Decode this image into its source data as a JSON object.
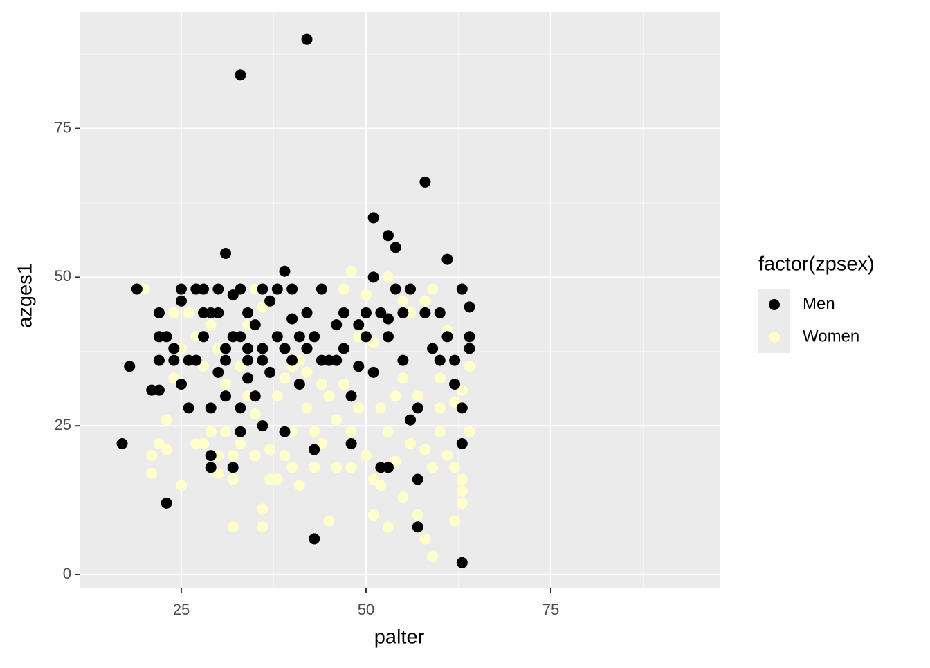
{
  "chart_data": {
    "type": "scatter",
    "x_label": "palter",
    "y_label": "azges1",
    "legend_title": "factor(zpsex)",
    "legend_position": "right",
    "grid": true,
    "xlim": [
      11.24,
      97.85
    ],
    "ylim": [
      -2.33,
      94.5
    ],
    "xticks": [
      25,
      50,
      75
    ],
    "yticks": [
      0,
      25,
      50,
      75
    ],
    "x_minor_breaks": [
      12.5,
      37.5,
      62.5,
      87.5
    ],
    "y_minor_breaks": [
      12.5,
      37.5,
      62.5,
      87.5
    ],
    "series": [
      {
        "name": "Women",
        "color": "#ffffcc",
        "x": [
          20,
          21,
          21,
          22,
          23,
          23,
          24,
          24,
          25,
          25,
          26,
          27,
          28,
          28,
          29,
          29,
          30,
          30,
          31,
          31,
          32,
          32,
          32,
          33,
          33,
          34,
          34,
          35,
          35,
          35,
          36,
          36,
          36,
          37,
          37,
          38,
          38,
          39,
          39,
          40,
          40,
          41,
          41,
          42,
          43,
          43,
          44,
          44,
          45,
          45,
          46,
          46,
          47,
          47,
          48,
          48,
          49,
          49,
          50,
          50,
          51,
          51,
          51,
          52,
          52,
          53,
          53,
          53,
          54,
          54,
          55,
          55,
          55,
          56,
          56,
          57,
          57,
          58,
          58,
          59,
          59,
          59,
          60,
          60,
          61,
          61,
          62,
          62,
          62,
          63,
          63,
          63,
          63,
          64,
          64,
          60,
          58,
          48,
          44,
          40,
          27,
          30,
          42
        ],
        "y": [
          48,
          20,
          17,
          22,
          26,
          21,
          44,
          33,
          15,
          38,
          44,
          40,
          35,
          22,
          24,
          42,
          17,
          38,
          24,
          32,
          8,
          16,
          20,
          35,
          22,
          42,
          30,
          48,
          27,
          20,
          11,
          8,
          45,
          21,
          16,
          30,
          16,
          20,
          33,
          24,
          18,
          15,
          36,
          28,
          18,
          24,
          36,
          22,
          9,
          30,
          18,
          26,
          48,
          32,
          51,
          18,
          28,
          40,
          20,
          47,
          10,
          39,
          16,
          15,
          28,
          8,
          50,
          24,
          30,
          19,
          13,
          46,
          33,
          22,
          44,
          10,
          30,
          6,
          46,
          3,
          18,
          48,
          24,
          33,
          20,
          41,
          9,
          29,
          18,
          16,
          14,
          12,
          31,
          24,
          35,
          28,
          21,
          24,
          32,
          35,
          22,
          20,
          34
        ]
      },
      {
        "name": "Men",
        "color": "#000000",
        "x": [
          17,
          18,
          19,
          21,
          22,
          22,
          22,
          22,
          23,
          23,
          24,
          24,
          25,
          25,
          25,
          26,
          27,
          28,
          28,
          29,
          29,
          29,
          29,
          30,
          30,
          31,
          31,
          31,
          32,
          32,
          33,
          33,
          33,
          33,
          33,
          34,
          34,
          34,
          35,
          36,
          36,
          36,
          37,
          38,
          39,
          39,
          39,
          40,
          40,
          41,
          42,
          42,
          43,
          43,
          43,
          44,
          45,
          46,
          47,
          48,
          49,
          50,
          51,
          51,
          51,
          52,
          53,
          53,
          54,
          54,
          55,
          56,
          57,
          57,
          58,
          58,
          59,
          60,
          61,
          62,
          63,
          63,
          63,
          64,
          64,
          64,
          63,
          56,
          57,
          52,
          53,
          48,
          47,
          46,
          44,
          42,
          41,
          40,
          38,
          37,
          36,
          35,
          34,
          32,
          31,
          30,
          27,
          26,
          28,
          53,
          50,
          49,
          55,
          60,
          61,
          62
        ],
        "y": [
          22,
          35,
          48,
          31,
          31,
          44,
          40,
          36,
          40,
          12,
          38,
          36,
          48,
          46,
          32,
          28,
          48,
          44,
          48,
          44,
          28,
          18,
          20,
          48,
          44,
          54,
          38,
          30,
          47,
          18,
          84,
          48,
          40,
          28,
          24,
          44,
          38,
          36,
          42,
          25,
          48,
          36,
          46,
          48,
          51,
          24,
          38,
          43,
          48,
          32,
          90,
          44,
          6,
          40,
          21,
          48,
          36,
          42,
          38,
          22,
          42,
          44,
          60,
          50,
          34,
          18,
          57,
          40,
          55,
          48,
          44,
          26,
          16,
          8,
          66,
          44,
          38,
          36,
          53,
          36,
          48,
          22,
          2,
          45,
          40,
          38,
          28,
          48,
          28,
          44,
          18,
          30,
          44,
          36,
          36,
          38,
          40,
          36,
          40,
          34,
          38,
          30,
          33,
          40,
          36,
          34,
          36,
          36,
          40,
          43,
          40,
          35,
          36,
          44,
          40,
          32
        ]
      }
    ]
  }
}
